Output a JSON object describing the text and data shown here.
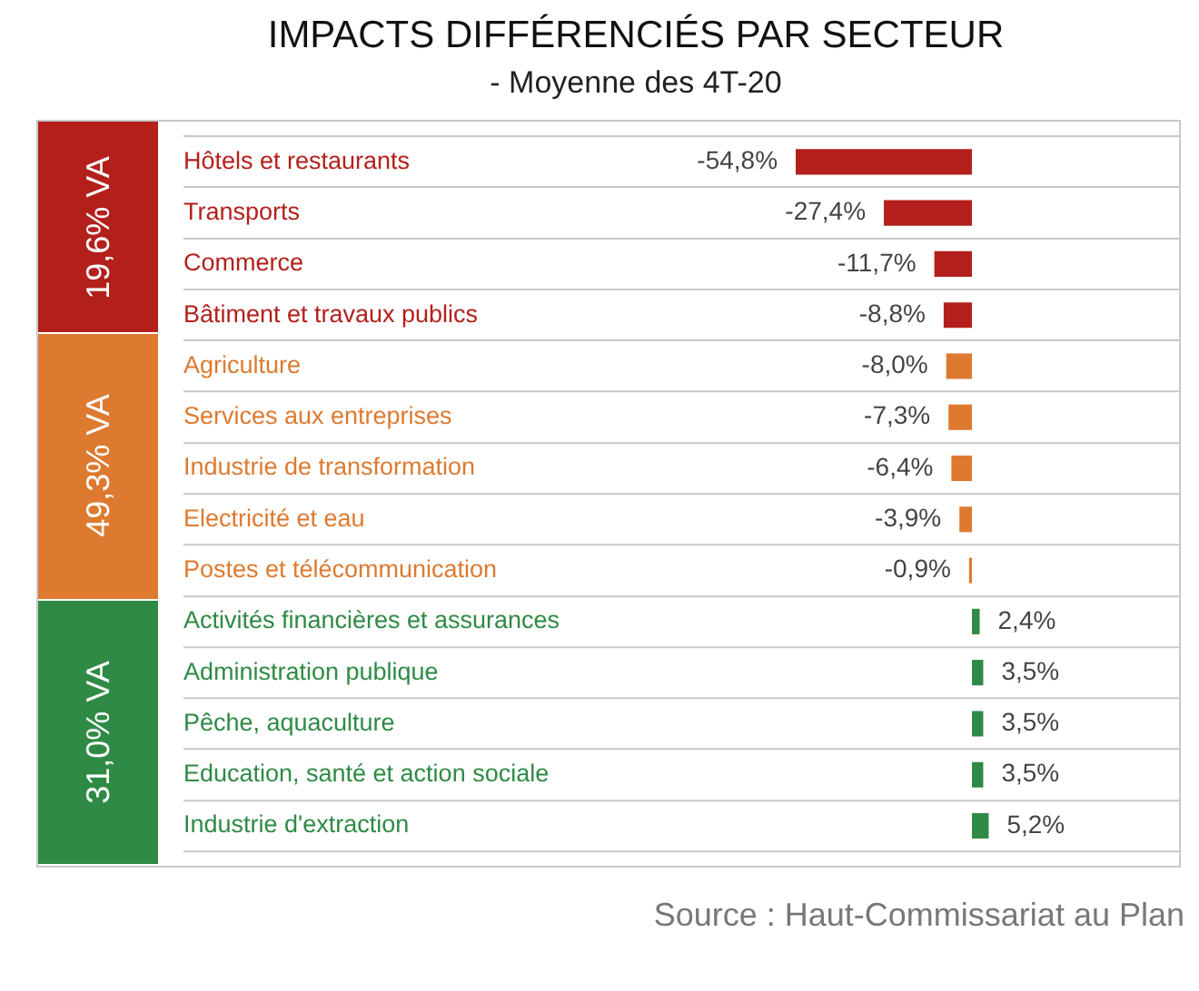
{
  "chart_data": {
    "type": "bar",
    "orientation": "horizontal",
    "title": "IMPACTS DIFFÉRENCIÉS PAR SECTEUR",
    "subtitle": "- Moyenne des 4T-20",
    "categories": [
      "Hôtels et restaurants",
      "Transports",
      "Commerce",
      "Bâtiment et travaux publics",
      "Agriculture",
      "Services aux entreprises",
      "Industrie de transformation",
      "Electricité et eau",
      "Postes et télécommunication",
      "Activités financières et assurances",
      "Administration publique",
      "Pêche, aquaculture",
      "Education, santé et action sociale",
      "Industrie d'extraction"
    ],
    "values": [
      -54.8,
      -27.4,
      -11.7,
      -8.8,
      -8.0,
      -7.3,
      -6.4,
      -3.9,
      -0.9,
      2.4,
      3.5,
      3.5,
      3.5,
      5.2
    ],
    "value_labels": [
      "-54,8%",
      "-27,4%",
      "-11,7%",
      "-8,8%",
      "-8,0%",
      "-7,3%",
      "-6,4%",
      "-3,9%",
      "-0,9%",
      "2,4%",
      "3,5%",
      "3,5%",
      "3,5%",
      "5,2%"
    ],
    "colors": [
      "#b3201c",
      "#b3201c",
      "#b3201c",
      "#b3201c",
      "#dd7a30",
      "#dd7a30",
      "#dd7a30",
      "#dd7a30",
      "#dd7a30",
      "#2f8a45",
      "#2f8a45",
      "#2f8a45",
      "#2f8a45",
      "#2f8a45"
    ],
    "annotations": [
      "19,6% VA",
      "49,3% VA",
      "31,0% VA",
      "Source : Haut-Commissariat au Plan"
    ],
    "grid": "y",
    "tick_labels": "y",
    "legend": false
  }
}
